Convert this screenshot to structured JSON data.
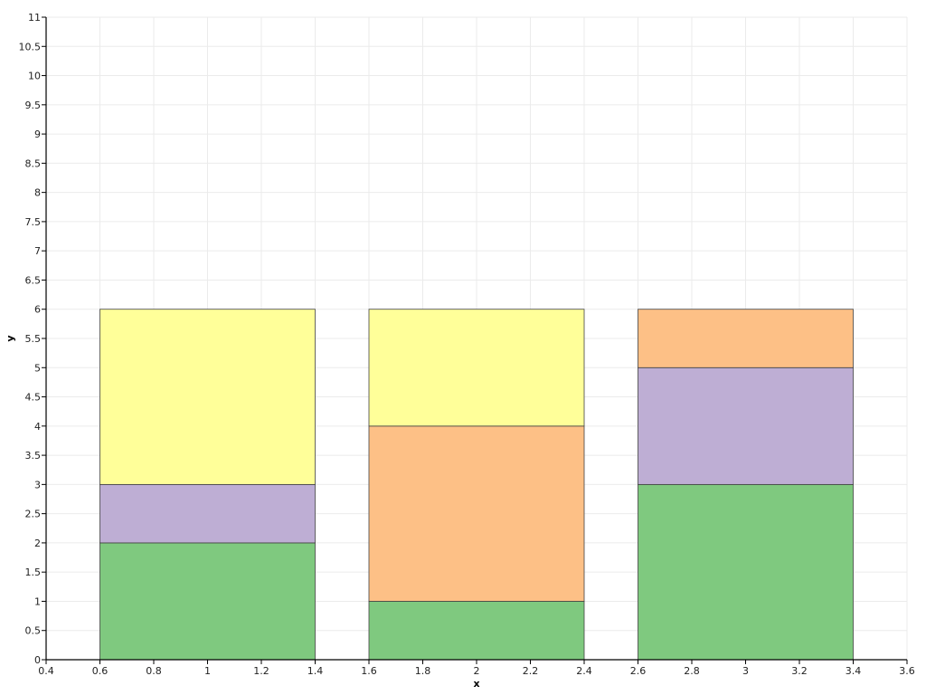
{
  "chart_data": {
    "type": "bar",
    "stacked": true,
    "x": [
      1,
      2,
      3
    ],
    "bar_width": 0.8,
    "series": [
      {
        "values": [
          2,
          1,
          3
        ],
        "color": "#7fc97f"
      },
      {
        "values": [
          1,
          0,
          2
        ],
        "color": "#beaed4"
      },
      {
        "values": [
          0,
          3,
          1
        ],
        "color": "#fdc086"
      },
      {
        "values": [
          3,
          2,
          0
        ],
        "color": "#ffff99"
      }
    ],
    "xlabel": "x",
    "ylabel": "y",
    "xlim": [
      0.4,
      3.6
    ],
    "ylim": [
      0,
      11
    ],
    "xticks": [
      "0.4",
      "0.6",
      "0.8",
      "1",
      "1.2",
      "1.4",
      "1.6",
      "1.8",
      "2",
      "2.2",
      "2.4",
      "2.6",
      "2.8",
      "3",
      "3.2",
      "3.4",
      "3.6"
    ],
    "yticks": [
      "0",
      "0.5",
      "1",
      "1.5",
      "2",
      "2.5",
      "3",
      "3.5",
      "4",
      "4.5",
      "5",
      "5.5",
      "6",
      "6.5",
      "7",
      "7.5",
      "8",
      "8.5",
      "9",
      "9.5",
      "10",
      "10.5",
      "11"
    ],
    "grid": true
  }
}
